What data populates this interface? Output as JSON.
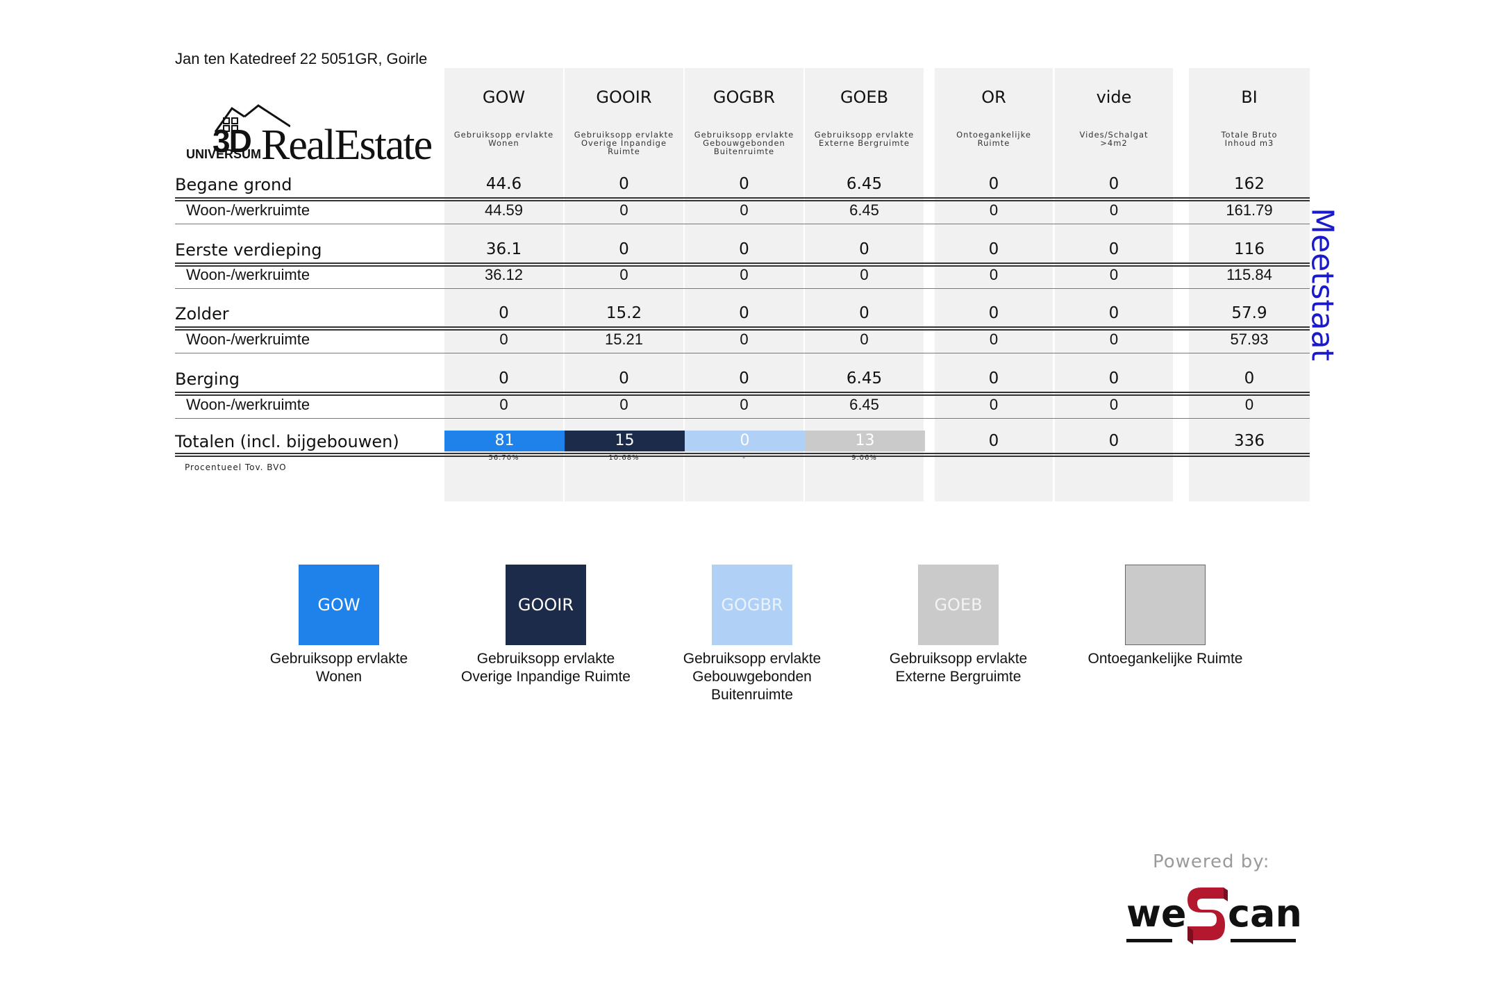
{
  "address": "Jan ten Katedreef 22 5051GR, Goirle",
  "logo": {
    "text": "3DUNIVERSUMRealEstate"
  },
  "columns": [
    {
      "code": "GOW",
      "desc": [
        "Gebruiksopp ervlakte",
        "Wonen"
      ]
    },
    {
      "code": "GOOIR",
      "desc": [
        "Gebruiksopp ervlakte",
        "Overige Inpandige",
        "Ruimte"
      ]
    },
    {
      "code": "GOGBR",
      "desc": [
        "Gebruiksopp ervlakte",
        "Gebouwgebonden",
        "Buitenruimte"
      ]
    },
    {
      "code": "GOEB",
      "desc": [
        "Gebruiksopp ervlakte",
        "Externe Bergruimte"
      ]
    },
    {
      "code": "OR",
      "desc": [
        "Ontoegankelijke",
        "Ruimte"
      ]
    },
    {
      "code": "vide",
      "desc": [
        "Vides/Schalgat",
        ">4m2"
      ]
    },
    {
      "code": "BI",
      "desc": [
        "Totale Bruto",
        "Inhoud m3"
      ]
    }
  ],
  "rows": [
    {
      "label": "Begane grond",
      "type": "main",
      "values": [
        "44.6",
        "0",
        "0",
        "6.45",
        "0",
        "0",
        "162"
      ]
    },
    {
      "label": "Woon-/werkruimte",
      "type": "sub",
      "values": [
        "44.59",
        "0",
        "0",
        "6.45",
        "0",
        "0",
        "161.79"
      ]
    },
    {
      "label": "Eerste verdieping",
      "type": "main",
      "values": [
        "36.1",
        "0",
        "0",
        "0",
        "0",
        "0",
        "116"
      ]
    },
    {
      "label": "Woon-/werkruimte",
      "type": "sub",
      "values": [
        "36.12",
        "0",
        "0",
        "0",
        "0",
        "0",
        "115.84"
      ]
    },
    {
      "label": "Zolder",
      "type": "main",
      "values": [
        "0",
        "15.2",
        "0",
        "0",
        "0",
        "0",
        "57.9"
      ]
    },
    {
      "label": "Woon-/werkruimte",
      "type": "sub",
      "values": [
        "0",
        "15.21",
        "0",
        "0",
        "0",
        "0",
        "57.93"
      ]
    },
    {
      "label": "Berging",
      "type": "main",
      "values": [
        "0",
        "0",
        "0",
        "6.45",
        "0",
        "0",
        "0"
      ]
    },
    {
      "label": "Woon-/werkruimte",
      "type": "sub",
      "values": [
        "0",
        "0",
        "0",
        "6.45",
        "0",
        "0",
        "0"
      ]
    }
  ],
  "totals": {
    "label": "Totalen (incl. bijgebouwen)",
    "values": [
      "81",
      "15",
      "0",
      "13",
      "0",
      "0",
      "336"
    ],
    "percentages": [
      "56.70%",
      "10.68%",
      "-",
      "9.06%"
    ],
    "note": "Procentueel Tov. BVO"
  },
  "colors": {
    "GOW": "#1f82ea",
    "GOOIR": "#1d2b4a",
    "GOGBR": "#b0d1f5",
    "GOEB": "#cacaca",
    "OR": "#cacaca"
  },
  "side_title": "Meetstaat",
  "legend": [
    {
      "code": "GOW",
      "label": [
        "Gebruiksopp ervlakte",
        "Wonen"
      ]
    },
    {
      "code": "GOOIR",
      "label": [
        "Gebruiksopp ervlakte",
        "Overige Inpandige Ruimte"
      ]
    },
    {
      "code": "GOGBR",
      "label": [
        "Gebruiksopp ervlakte",
        "Gebouwgebonden",
        "Buitenruimte"
      ]
    },
    {
      "code": "GOEB",
      "label": [
        "Gebruiksopp ervlakte",
        "Externe Bergruimte"
      ]
    },
    {
      "code": "",
      "label": [
        "Ontoegankelijke Ruimte"
      ]
    }
  ],
  "powered_by": "Powered by:",
  "brand": {
    "part1": "we",
    "part2": "can"
  }
}
